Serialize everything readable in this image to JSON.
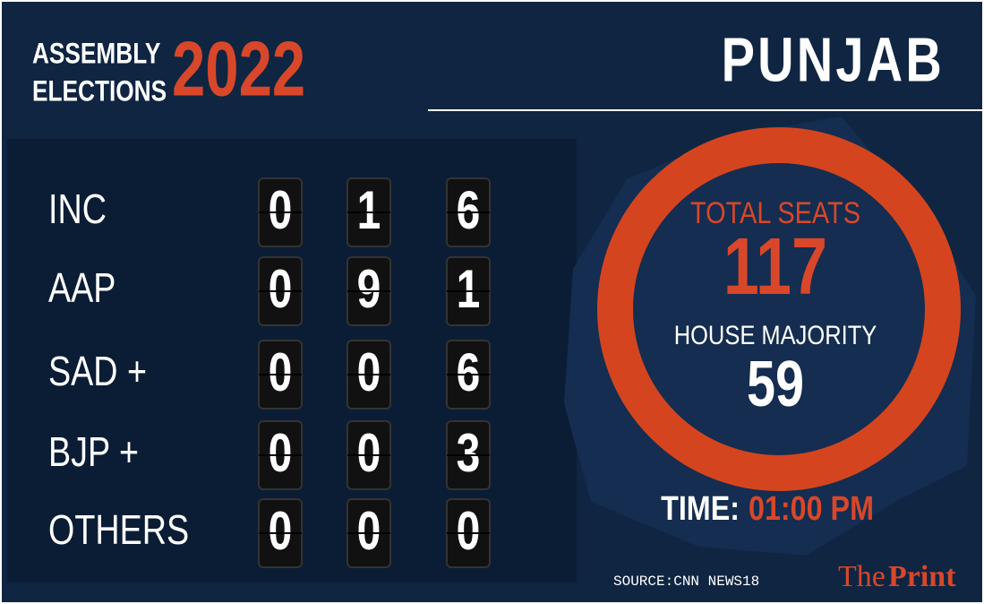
{
  "header": {
    "line1": "ASSEMBLY",
    "line2": "ELECTIONS",
    "year": "2022",
    "state": "PUNJAB"
  },
  "parties": [
    {
      "name": "INC",
      "digits": [
        "0",
        "1",
        "6"
      ]
    },
    {
      "name": "AAP",
      "digits": [
        "0",
        "9",
        "1"
      ]
    },
    {
      "name": "SAD +",
      "digits": [
        "0",
        "0",
        "6"
      ]
    },
    {
      "name": "BJP +",
      "digits": [
        "0",
        "0",
        "3"
      ]
    },
    {
      "name": "OTHERS",
      "digits": [
        "0",
        "0",
        "0"
      ]
    }
  ],
  "summary": {
    "total_label": "TOTAL SEATS",
    "total": 117,
    "majority_label": "HOUSE MAJORITY",
    "majority": 59,
    "time_label": "TIME:",
    "time": "01:00 PM"
  },
  "footer": {
    "source": "SOURCE:CNN NEWS18",
    "brand_a": "The",
    "brand_b": "Print"
  }
}
